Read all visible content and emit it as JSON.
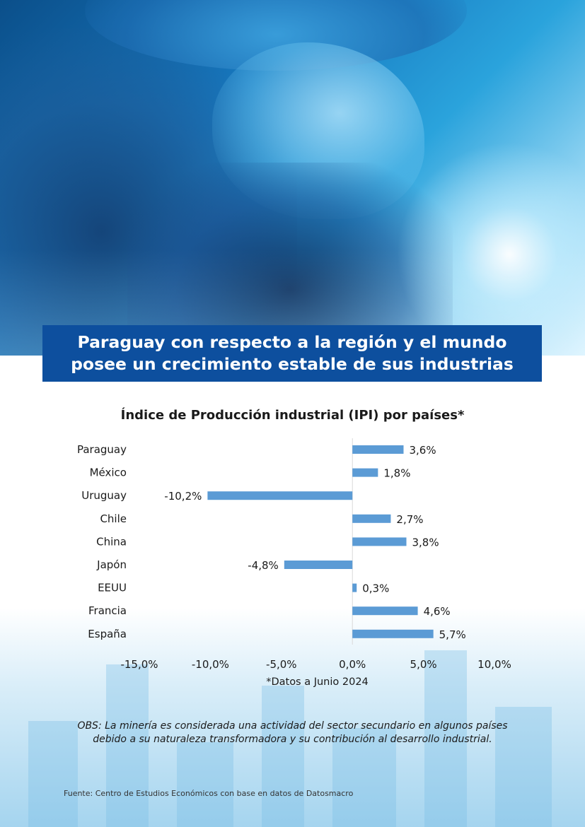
{
  "banner": {
    "line1": "Paraguay con respecto a la región y el mundo",
    "line2": "posee un crecimiento estable de sus industrias"
  },
  "chart_data": {
    "type": "bar",
    "orientation": "horizontal",
    "title": "Índice de Producción industrial (IPI) por países*",
    "categories": [
      "Paraguay",
      "México",
      "Uruguay",
      "Chile",
      "China",
      "Japón",
      "EEUU",
      "Francia",
      "España"
    ],
    "values": [
      3.6,
      1.8,
      -10.2,
      2.7,
      3.8,
      -4.8,
      0.3,
      4.6,
      5.7
    ],
    "data_labels": [
      "3,6%",
      "1,8%",
      "-10,2%",
      "2,7%",
      "3,8%",
      "-4,8%",
      "0,3%",
      "4,6%",
      "5,7%"
    ],
    "xlim": [
      -15,
      10
    ],
    "xticks": [
      -15,
      -10,
      -5,
      0,
      5,
      10
    ],
    "xtick_labels": [
      "-15,0%",
      "-10,0%",
      "-5,0%",
      "0,0%",
      "5,0%",
      "10,0%"
    ],
    "xlabel": "",
    "ylabel": "",
    "grid": false,
    "bar_color": "#5b9bd5",
    "note": "*Datos a Junio 2024"
  },
  "obs": {
    "line1": "OBS:  La minería es considerada una actividad del sector secundario en algunos países",
    "line2": "debido a su naturaleza transformadora y su contribución al desarrollo industrial."
  },
  "source": "Fuente: Centro de Estudios Económicos con base en datos de Datosmacro",
  "colors": {
    "banner_bg": "#0d4f9e",
    "accent": "#5b9bd5"
  }
}
